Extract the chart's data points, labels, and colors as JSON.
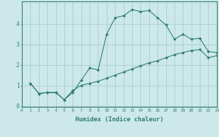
{
  "x_upper": [
    1,
    2,
    3,
    4,
    5,
    6,
    7,
    8,
    9,
    10,
    11,
    12,
    13,
    14,
    15,
    16,
    17,
    18,
    19,
    20,
    21,
    22,
    23
  ],
  "y_upper": [
    1.1,
    0.6,
    0.65,
    0.65,
    0.3,
    0.65,
    1.25,
    1.85,
    1.75,
    3.5,
    4.3,
    4.4,
    4.7,
    4.6,
    4.65,
    4.3,
    3.95,
    3.25,
    3.5,
    3.25,
    3.3,
    2.65,
    2.6
  ],
  "x_lower": [
    1,
    2,
    3,
    4,
    5,
    6,
    7,
    8,
    9,
    10,
    11,
    12,
    13,
    14,
    15,
    16,
    17,
    18,
    19,
    20,
    21,
    22,
    23
  ],
  "y_lower": [
    1.1,
    0.6,
    0.65,
    0.65,
    0.3,
    0.75,
    1.0,
    1.1,
    1.2,
    1.35,
    1.5,
    1.65,
    1.8,
    1.95,
    2.1,
    2.2,
    2.35,
    2.5,
    2.6,
    2.7,
    2.75,
    2.35,
    2.45
  ],
  "line_color": "#2e7d6e",
  "marker": "D",
  "marker_size": 2.0,
  "bg_color": "#cce8e8",
  "grid_color": "#aacccc",
  "xlabel": "Humidex (Indice chaleur)",
  "xlim": [
    0,
    23
  ],
  "ylim": [
    -0.05,
    5.1
  ],
  "yticks": [
    0,
    1,
    2,
    3,
    4
  ],
  "xticks": [
    0,
    1,
    2,
    3,
    4,
    5,
    6,
    7,
    8,
    9,
    10,
    11,
    12,
    13,
    14,
    15,
    16,
    17,
    18,
    19,
    20,
    21,
    22,
    23
  ],
  "xtick_labels": [
    "0",
    "1",
    "2",
    "3",
    "4",
    "5",
    "6",
    "7",
    "8",
    "9",
    "10",
    "11",
    "12",
    "13",
    "14",
    "15",
    "16",
    "17",
    "18",
    "19",
    "20",
    "21",
    "22",
    "23"
  ]
}
